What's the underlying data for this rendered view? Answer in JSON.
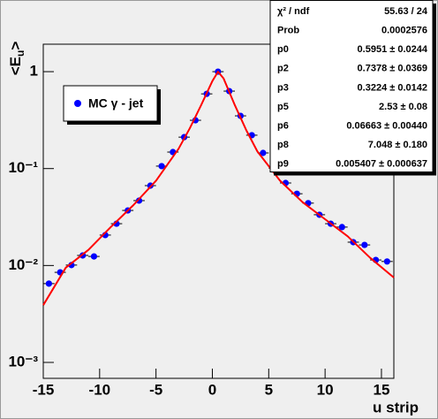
{
  "chart_data": {
    "type": "scatter",
    "xlabel": "u strip",
    "ylabel": [
      "<E",
      "u",
      ">"
    ],
    "xlim": [
      -15,
      16.1
    ],
    "ylim": [
      0.000685,
      1.92
    ],
    "log_y": true,
    "xticks": [
      -15,
      -10,
      -5,
      0,
      5,
      10,
      15
    ],
    "yticks": [
      {
        "value": 0.001,
        "label": "10⁻³"
      },
      {
        "value": 0.01,
        "label": "10⁻²"
      },
      {
        "value": 0.1,
        "label": "10⁻¹"
      },
      1
    ],
    "xerr": 0.5,
    "series": [
      {
        "name": "MC γ - jet",
        "color": "#0000ff",
        "x": [
          -14.5,
          -13.5,
          -12.5,
          -11.5,
          -10.5,
          -9.5,
          -8.5,
          -7.5,
          -6.5,
          -5.5,
          -4.5,
          -3.5,
          -2.5,
          -1.5,
          -0.5,
          0.5,
          1.5,
          2.5,
          3.5,
          4.5,
          5.5,
          6.5,
          7.5,
          8.5,
          9.5,
          10.5,
          11.5,
          12.5,
          13.5,
          14.5,
          15.5
        ],
        "values": [
          0.0065,
          0.0085,
          0.0101,
          0.0127,
          0.0124,
          0.0206,
          0.027,
          0.037,
          0.0467,
          0.0667,
          0.106,
          0.148,
          0.211,
          0.315,
          0.59,
          1.0,
          0.63,
          0.35,
          0.221,
          0.145,
          0.101,
          0.071,
          0.055,
          0.044,
          0.0334,
          0.027,
          0.0249,
          0.0174,
          0.0163,
          0.0114,
          0.011
        ]
      },
      {
        "color": "#ff0000",
        "x": [
          -15,
          -13,
          -11,
          -9,
          -7,
          -5,
          -3,
          -2,
          -1,
          0,
          0.5,
          1,
          2,
          3,
          4,
          6,
          8,
          10,
          12,
          14,
          16.1
        ],
        "values": [
          0.0039,
          0.0095,
          0.0145,
          0.025,
          0.042,
          0.075,
          0.16,
          0.26,
          0.45,
          0.8,
          1.0,
          0.85,
          0.45,
          0.25,
          0.15,
          0.075,
          0.045,
          0.03,
          0.02,
          0.012,
          0.0075
        ]
      }
    ],
    "stats": [
      [
        "χ² / ndf",
        "55.63 / 24"
      ],
      [
        "Prob",
        "0.0002576"
      ],
      [
        "p0",
        "0.5951 ± 0.0244"
      ],
      [
        "p2",
        "0.7378 ± 0.0369"
      ],
      [
        "p3",
        "0.3224 ± 0.0142"
      ],
      [
        "p5",
        "2.53 ± 0.08"
      ],
      [
        "p6",
        "0.06663 ± 0.00440"
      ],
      [
        "p8",
        "7.048 ± 0.180"
      ],
      [
        "p9",
        "0.005407 ± 0.000637"
      ]
    ]
  }
}
